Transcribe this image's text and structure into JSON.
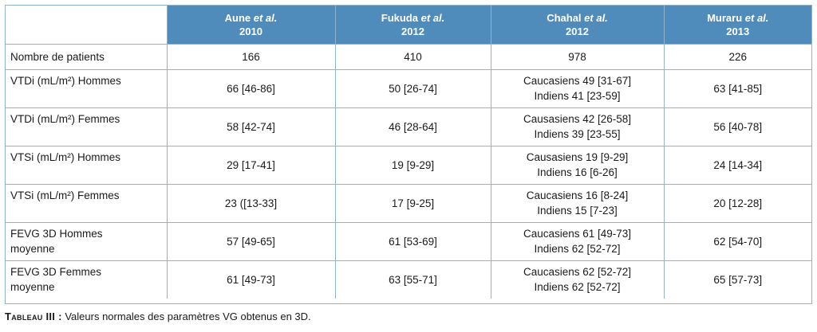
{
  "header": {
    "authors": [
      {
        "name": "Aune",
        "etal": "et al.",
        "year": "2010"
      },
      {
        "name": "Fukuda",
        "etal": "et al.",
        "year": "2012"
      },
      {
        "name": "Chahal",
        "etal": "et al.",
        "year": "2012"
      },
      {
        "name": "Muraru",
        "etal": "et al.",
        "year": "2013"
      }
    ]
  },
  "rows": [
    {
      "label": "Nombre de patients",
      "cells": [
        [
          "166"
        ],
        [
          "410"
        ],
        [
          "978"
        ],
        [
          "226"
        ]
      ]
    },
    {
      "label": "VTDi (mL/m²) Hommes",
      "cells": [
        [
          "66 [46-86]"
        ],
        [
          "50 [26-74]"
        ],
        [
          "Caucasiens 49 [31-67]",
          "Indiens 41 [23-59]"
        ],
        [
          "63 [41-85]"
        ]
      ]
    },
    {
      "label": "VTDi (mL/m²) Femmes",
      "cells": [
        [
          "58 [42-74]"
        ],
        [
          "46 [28-64]"
        ],
        [
          "Causasiens 42 [26-58]",
          "Indiens 39 [23-55]"
        ],
        [
          "56 [40-78]"
        ]
      ]
    },
    {
      "label": "VTSi (mL/m²) Hommes",
      "cells": [
        [
          "29 [17-41]"
        ],
        [
          "19 [9-29]"
        ],
        [
          "Causasiens 19 [9-29]",
          "Indiens 16 [6-26]"
        ],
        [
          "24 [14-34]"
        ]
      ]
    },
    {
      "label": "VTSi (mL/m²) Femmes",
      "cells": [
        [
          "23 ([13-33]"
        ],
        [
          "17 [9-25]"
        ],
        [
          "Caucasiens 16 [8-24]",
          "Indiens 15 [7-23]"
        ],
        [
          "20 [12-28]"
        ]
      ]
    },
    {
      "label1": "FEVG 3D Hommes",
      "label2": "moyenne",
      "cells": [
        [
          "57 [49-65]"
        ],
        [
          "61 [53-69]"
        ],
        [
          "Caucasiens 61 [49-73]",
          "Indiens 62 [52-72]"
        ],
        [
          "62 [54-70]"
        ]
      ]
    },
    {
      "label1": "FEVG 3D Femmes",
      "label2": "moyenne",
      "cells": [
        [
          "61 [49-73]"
        ],
        [
          "63 [55-71]"
        ],
        [
          "Caucasiens 62 [52-72]",
          "Indiens 62 [52-72]"
        ],
        [
          "65 [57-73]"
        ]
      ]
    }
  ],
  "caption": {
    "tag": "Tableau III :",
    "text": " Valeurs normales des paramètres VG obtenus en 3D."
  }
}
